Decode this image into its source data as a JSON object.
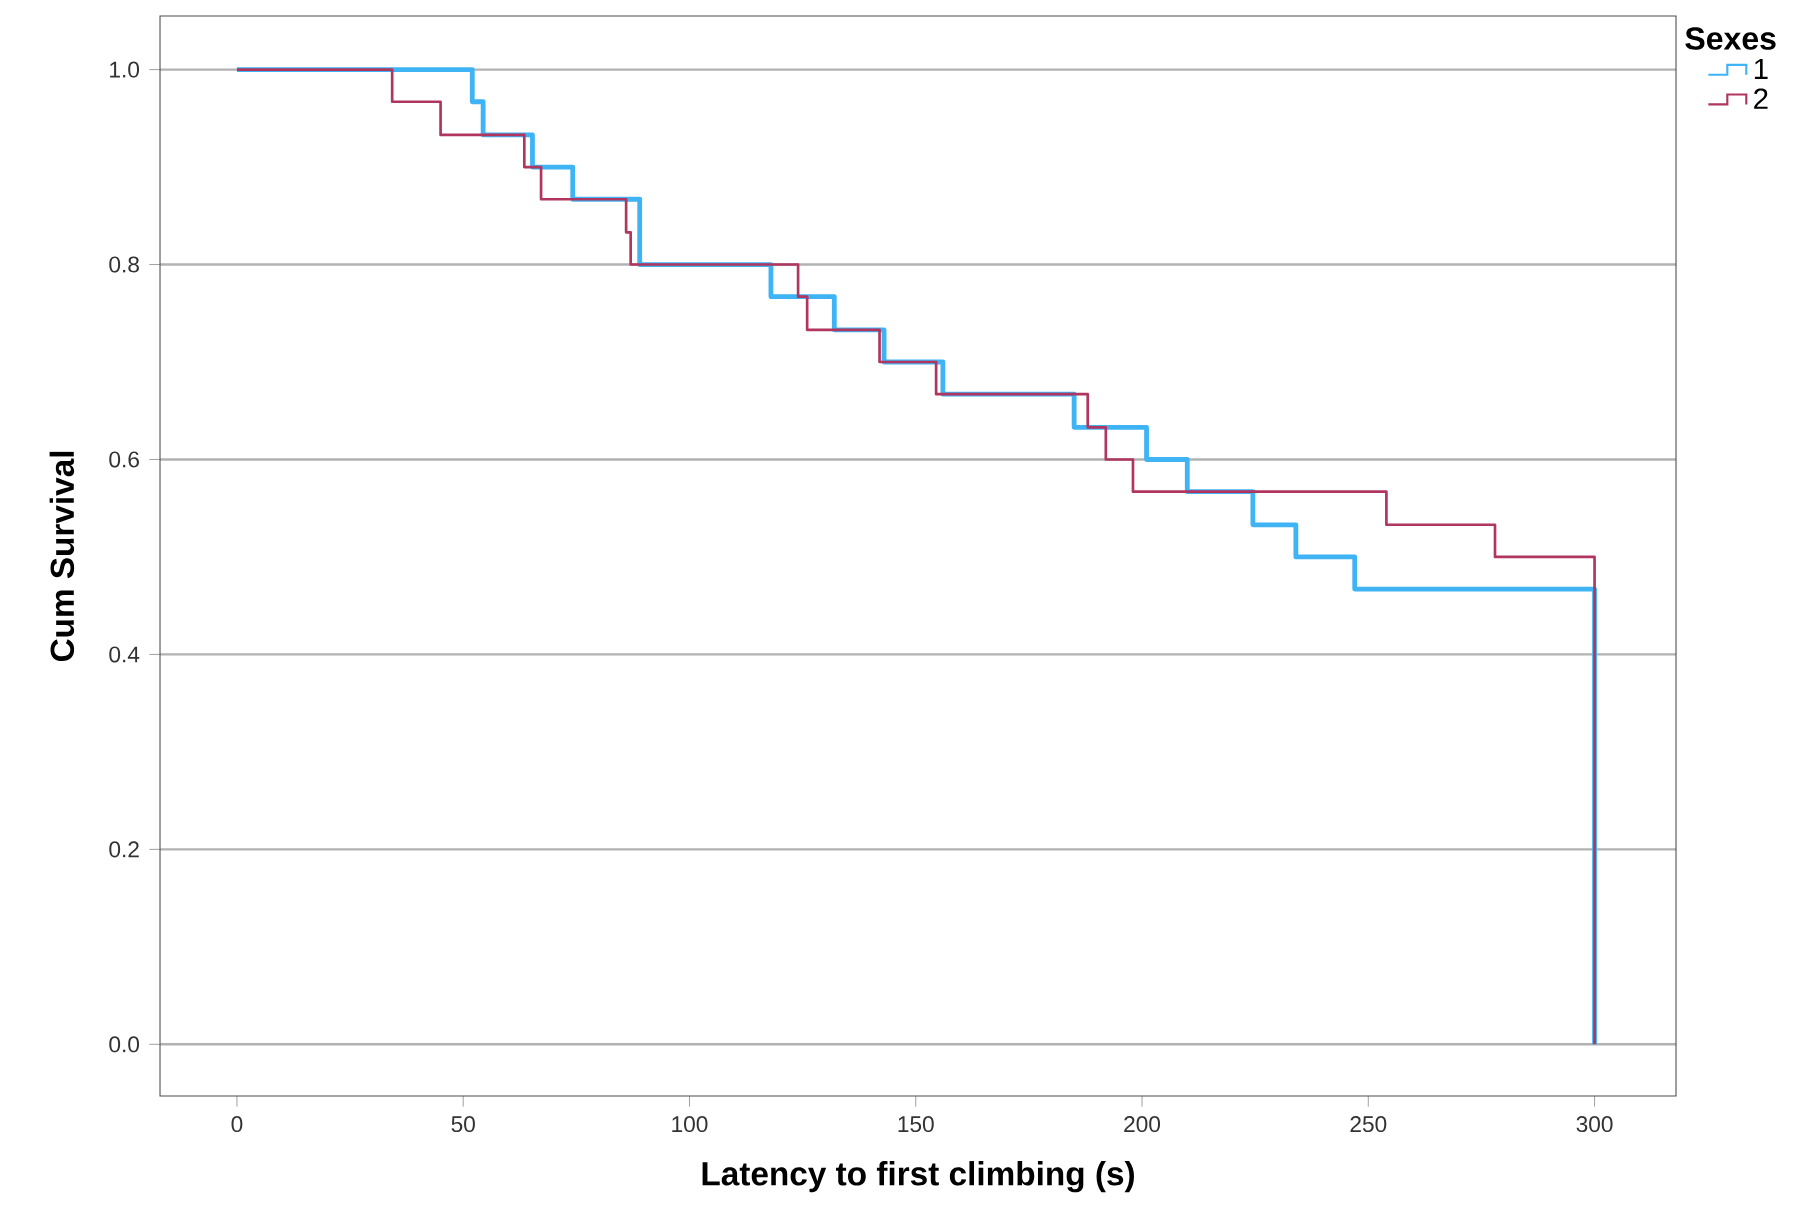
{
  "chart_data": {
    "type": "step",
    "xlabel": "Latency to first climbing (s)",
    "ylabel": "Cum Survival",
    "legend_title": "Sexes",
    "xlim": [
      -17,
      318
    ],
    "ylim": [
      -0.053,
      1.055
    ],
    "xticks": [
      0,
      50,
      100,
      150,
      200,
      250,
      300
    ],
    "yticks": [
      {
        "value": 0,
        "label": "0.0"
      },
      {
        "value": 0.2,
        "label": "0.2"
      },
      {
        "value": 0.4,
        "label": "0.4"
      },
      {
        "value": 0.6,
        "label": "0.6"
      },
      {
        "value": 0.8,
        "label": "0.8"
      },
      {
        "value": 1,
        "label": "1.0"
      }
    ],
    "grid": "y",
    "legend": "top right",
    "series": [
      {
        "name": "1",
        "color": "#3fb4f5",
        "x": [
          0,
          52,
          54.4,
          65.3,
          74.2,
          89,
          118,
          132,
          143,
          156,
          185,
          201,
          210,
          224.5,
          234,
          247,
          300
        ],
        "values": [
          1,
          0.967,
          0.933,
          0.9,
          0.867,
          0.8,
          0.767,
          0.733,
          0.7,
          0.667,
          0.633,
          0.6,
          0.567,
          0.533,
          0.5,
          0.467,
          0
        ]
      },
      {
        "name": "2",
        "color": "#b0355f",
        "x": [
          0,
          34.3,
          45,
          63.5,
          67.2,
          86,
          87,
          124,
          126,
          142,
          154.5,
          188,
          192,
          198,
          254,
          278,
          300
        ],
        "values": [
          1,
          0.967,
          0.933,
          0.9,
          0.867,
          0.833,
          0.8,
          0.767,
          0.733,
          0.7,
          0.667,
          0.633,
          0.6,
          0.567,
          0.533,
          0.5,
          0
        ]
      }
    ]
  }
}
